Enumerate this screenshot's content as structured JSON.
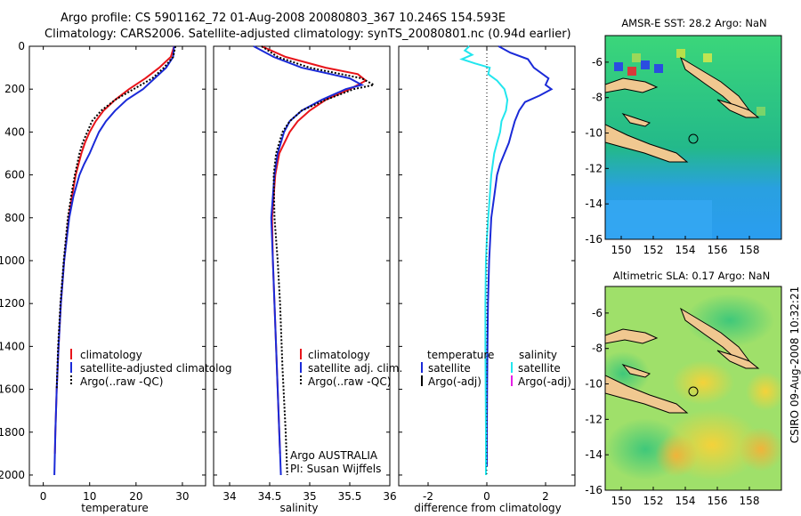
{
  "header": {
    "line1": "Argo profile: CS 5901162_72 01-Aug-2008 20080803_367 10.246S 154.593E",
    "line2": "Climatology: CARS2006. Satellite-adjusted climatology: synTS_20080801.nc (0.94d earlier)"
  },
  "side_stamp": "CSIRO 09-Aug-2008 10:32:21",
  "colors": {
    "red": "#e8141a",
    "blue": "#1a2ad8",
    "black": "#000000",
    "cyan": "#22e6ee",
    "magenta": "#e61ee6"
  },
  "chart_data": [
    {
      "id": "temperature",
      "type": "line",
      "xlabel": "temperature",
      "ylabel": "",
      "xlim": [
        -3,
        35
      ],
      "ylim": [
        2050,
        0
      ],
      "xticks": [
        0,
        10,
        20,
        30
      ],
      "yticks": [
        0,
        200,
        400,
        600,
        800,
        1000,
        1200,
        1400,
        1600,
        1800,
        2000
      ],
      "legend_position": "center-right",
      "legend": [
        "climatology",
        "satellite-adjusted climatolog",
        "Argo(..raw -QC)"
      ],
      "series": [
        {
          "name": "climatology",
          "color": "red",
          "style": "solid",
          "depth": [
            0,
            50,
            100,
            150,
            200,
            250,
            300,
            350,
            400,
            450,
            500,
            600,
            700,
            800,
            1000,
            1200,
            1400,
            1600,
            1800,
            1900
          ],
          "values": [
            28.2,
            27.5,
            25.0,
            22.0,
            18.5,
            15.5,
            13.0,
            11.3,
            10.0,
            9.0,
            8.2,
            7.0,
            6.2,
            5.5,
            4.5,
            3.8,
            3.3,
            2.9,
            2.6,
            2.5
          ]
        },
        {
          "name": "satellite-adjusted climatology",
          "color": "blue",
          "style": "solid",
          "depth": [
            0,
            50,
            100,
            150,
            200,
            250,
            300,
            350,
            400,
            450,
            500,
            550,
            600,
            700,
            800,
            1000,
            1200,
            1400,
            1600,
            1800,
            2000
          ],
          "values": [
            28.2,
            28.0,
            26.5,
            24.0,
            21.5,
            18.0,
            15.5,
            13.5,
            12.0,
            11.0,
            10.0,
            8.8,
            7.8,
            6.5,
            5.6,
            4.5,
            3.8,
            3.3,
            2.9,
            2.6,
            2.4
          ]
        },
        {
          "name": "Argo(..raw -QC)",
          "color": "black",
          "style": "dotted",
          "depth": [
            0,
            50,
            100,
            150,
            200,
            250,
            300,
            350,
            400,
            450,
            500,
            600,
            700,
            800,
            1000,
            1200,
            1400,
            1600
          ],
          "values": [
            28.5,
            28.0,
            26.0,
            23.5,
            19.5,
            15.5,
            12.5,
            10.5,
            9.5,
            8.5,
            7.8,
            6.8,
            6.0,
            5.3,
            4.4,
            3.7,
            3.2,
            2.9
          ]
        }
      ]
    },
    {
      "id": "salinity",
      "type": "line",
      "xlabel": "salinity",
      "ylabel": "",
      "xlim": [
        33.8,
        36.0
      ],
      "ylim": [
        2050,
        0
      ],
      "xticks": [
        34,
        34.5,
        35,
        35.5,
        36
      ],
      "legend_position": "center-right",
      "legend": [
        "climatology",
        "satellite adj. clim.",
        "Argo(..raw -QC)"
      ],
      "annotation": [
        "Argo AUSTRALIA",
        "PI: Susan Wijffels"
      ],
      "series": [
        {
          "name": "climatology",
          "color": "red",
          "style": "solid",
          "depth": [
            0,
            50,
            100,
            130,
            160,
            200,
            250,
            300,
            350,
            400,
            500,
            600,
            800,
            1000,
            1200,
            1500,
            1800,
            1900
          ],
          "values": [
            34.4,
            34.7,
            35.2,
            35.6,
            35.7,
            35.5,
            35.2,
            35.0,
            34.85,
            34.75,
            34.62,
            34.57,
            34.53,
            34.54,
            34.56,
            34.59,
            34.62,
            34.63
          ]
        },
        {
          "name": "satellite adj. clim.",
          "color": "blue",
          "style": "solid",
          "depth": [
            0,
            50,
            100,
            150,
            180,
            200,
            250,
            300,
            350,
            400,
            500,
            600,
            800,
            1000,
            1200,
            1500,
            1800,
            2000
          ],
          "values": [
            34.3,
            34.55,
            34.9,
            35.5,
            35.65,
            35.45,
            35.15,
            34.9,
            34.75,
            34.68,
            34.6,
            34.56,
            34.52,
            34.54,
            34.56,
            34.59,
            34.62,
            34.64
          ]
        },
        {
          "name": "Argo(..raw -QC)",
          "color": "black",
          "style": "dotted",
          "depth": [
            0,
            50,
            100,
            150,
            180,
            200,
            250,
            300,
            350,
            400,
            500,
            600,
            800,
            1000,
            1200,
            1500,
            1800,
            2000
          ],
          "values": [
            34.4,
            34.6,
            35.0,
            35.65,
            35.8,
            35.55,
            35.2,
            34.9,
            34.75,
            34.66,
            34.58,
            34.55,
            34.56,
            34.6,
            34.63,
            34.66,
            34.7,
            34.72
          ]
        }
      ]
    },
    {
      "id": "difference",
      "type": "line",
      "xlabel": "difference from climatology",
      "ylabel": "",
      "xlim": [
        -3,
        3
      ],
      "ylim": [
        2050,
        0
      ],
      "xticks": [
        -2,
        0,
        2
      ],
      "legend_headers": [
        "temperature",
        "salinity"
      ],
      "legend": [
        "satellite",
        "Argo(-adj)",
        "satellite",
        "Argo(-adj)"
      ],
      "series": [
        {
          "name": "temperature satellite",
          "color": "blue",
          "style": "solid",
          "depth": [
            0,
            30,
            60,
            100,
            150,
            180,
            200,
            230,
            260,
            300,
            350,
            400,
            450,
            500,
            550,
            600,
            700,
            800,
            1000,
            1200,
            1400,
            1600,
            1800,
            1960
          ],
          "values": [
            0.4,
            0.8,
            1.4,
            1.6,
            2.1,
            2.0,
            2.2,
            1.8,
            1.3,
            1.1,
            0.95,
            0.85,
            0.75,
            0.6,
            0.45,
            0.35,
            0.25,
            0.15,
            0.08,
            0.04,
            0.02,
            0.01,
            0.0,
            0.0
          ]
        },
        {
          "name": "salinity satellite",
          "color": "cyan",
          "style": "solid",
          "depth": [
            0,
            20,
            40,
            60,
            80,
            100,
            130,
            160,
            200,
            250,
            300,
            350,
            400,
            450,
            500,
            600,
            700,
            800,
            900,
            1000,
            1200,
            1400,
            1600,
            1800,
            2000
          ],
          "values": [
            -0.6,
            -0.75,
            -0.5,
            -0.85,
            -0.4,
            0.1,
            0.05,
            0.35,
            0.6,
            0.7,
            0.65,
            0.5,
            0.45,
            0.35,
            0.25,
            0.15,
            0.1,
            0.05,
            0.0,
            -0.03,
            -0.05,
            -0.05,
            -0.04,
            -0.03,
            -0.03
          ]
        },
        {
          "name": "zero line",
          "color": "black",
          "style": "dotted",
          "depth": [
            0,
            2000
          ],
          "values": [
            0,
            0
          ]
        }
      ]
    },
    {
      "id": "sst_map",
      "type": "heatmap",
      "title": "AMSR-E SST: 28.2 Argo: NaN",
      "xlim": [
        149,
        160
      ],
      "ylim": [
        -16,
        -4.5
      ],
      "xticks": [
        150,
        152,
        154,
        156,
        158
      ],
      "yticks": [
        -6,
        -8,
        -10,
        -12,
        -14,
        -16
      ],
      "argo_position": {
        "lon": 154.593,
        "lat": -10.246
      }
    },
    {
      "id": "sla_map",
      "type": "heatmap",
      "title": "Altimetric SLA: 0.17 Argo: NaN",
      "xlim": [
        149,
        160
      ],
      "ylim": [
        -16,
        -4.5
      ],
      "xticks": [
        150,
        152,
        154,
        156,
        158
      ],
      "yticks": [
        -6,
        -8,
        -10,
        -12,
        -14,
        -16
      ],
      "argo_position": {
        "lon": 154.593,
        "lat": -10.246
      }
    }
  ]
}
